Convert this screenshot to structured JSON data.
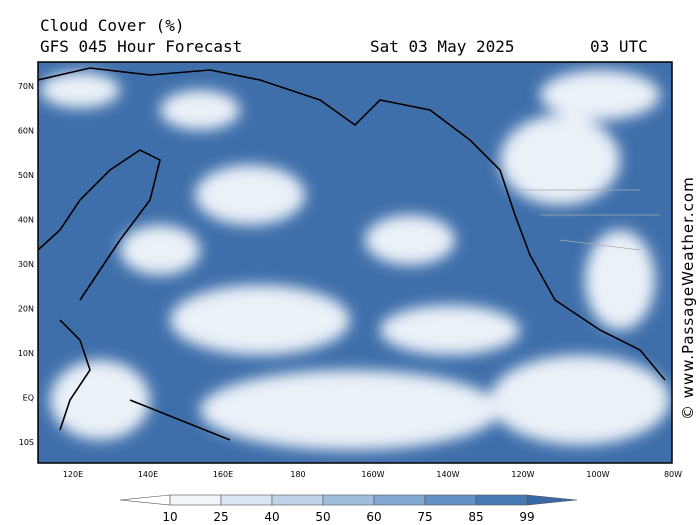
{
  "header": {
    "title": "Cloud Cover (%)",
    "subtitle": "GFS 045 Hour Forecast",
    "date": "Sat 03 May 2025",
    "time": "03 UTC"
  },
  "map": {
    "lat_labels": [
      "70N",
      "60N",
      "50N",
      "40N",
      "30N",
      "20N",
      "10N",
      "EQ",
      "10S"
    ],
    "lon_labels": [
      "120E",
      "140E",
      "160E",
      "180",
      "160W",
      "140W",
      "120W",
      "100W",
      "80W"
    ],
    "credit": "© www.PassageWeather.com"
  },
  "legend": {
    "ticks": [
      10,
      25,
      40,
      50,
      60,
      75,
      85,
      99
    ],
    "colors": [
      "#ffffff",
      "#f1f5fa",
      "#dbe6f3",
      "#bfd2e8",
      "#a0bddd",
      "#82a7d0",
      "#6490c3",
      "#4879b5",
      "#3a68a6"
    ]
  }
}
